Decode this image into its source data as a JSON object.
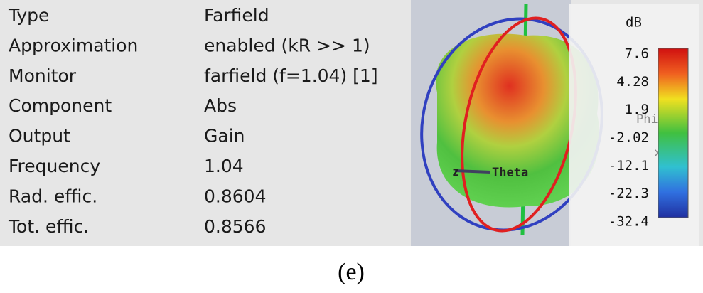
{
  "properties": [
    {
      "label": "Type",
      "value": "Farfield"
    },
    {
      "label": "Approximation",
      "value": "enabled (kR >> 1)"
    },
    {
      "label": "Monitor",
      "value": "farfield (f=1.04) [1]"
    },
    {
      "label": "Component",
      "value": "Abs"
    },
    {
      "label": "Output",
      "value": "Gain"
    },
    {
      "label": "Frequency",
      "value": "1.04"
    },
    {
      "label": "Rad. effic.",
      "value": "0.8604"
    },
    {
      "label": "Tot. effic.",
      "value": "0.8566"
    }
  ],
  "colorbar": {
    "unit": "dB",
    "labels": [
      "7.6",
      "4.28",
      "1.9",
      "-2.02",
      "-12.1",
      "-22.3",
      "-32.4"
    ]
  },
  "axes": {
    "theta": "Theta",
    "phi": "Phi",
    "z": "z",
    "x": "x"
  },
  "caption": "(e)"
}
